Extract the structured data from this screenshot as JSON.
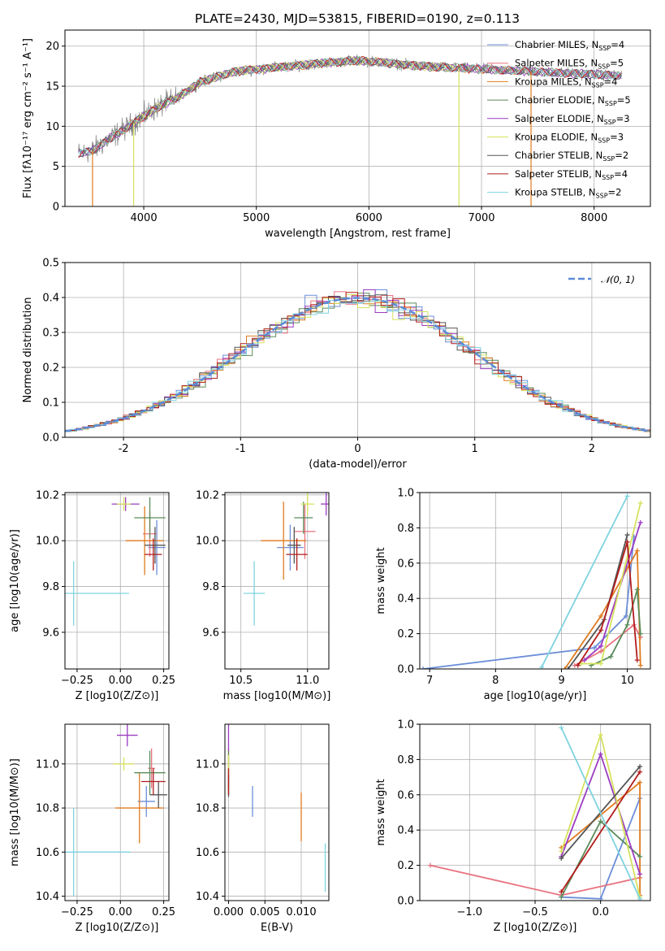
{
  "title": "PLATE=2430, MJD=53815, FIBERID=0190, z=0.113",
  "series_colors": [
    "#6c8ed8",
    "#e8727f",
    "#e07b1f",
    "#5b8c5a",
    "#9b3cc1",
    "#d6e25c",
    "#555555",
    "#b21c1c",
    "#7fd3e0"
  ],
  "chart_data": [
    {
      "type": "line",
      "id": "spectrum",
      "xlabel": "wavelength [Angstrom, rest frame]",
      "ylabel": "Flux [fλ10⁻¹⁷ erg cm⁻² s⁻¹ A⁻¹]",
      "xlim": [
        3300,
        8500
      ],
      "ylim": [
        0,
        22
      ],
      "xticks": [
        4000,
        5000,
        6000,
        7000,
        8000
      ],
      "yticks": [
        0,
        5,
        10,
        15,
        20
      ],
      "legend_position": "right",
      "legend": [
        "Chabrier MILES, N_SSP=4",
        "Salpeter MILES, N_SSP=5",
        "Kroupa MILES, N_SSP=4",
        "Chabrier ELODIE, N_SSP=5",
        "Salpeter ELODIE, N_SSP=3",
        "Kroupa ELODIE, N_SSP=3",
        "Chabrier STELIB, N_SSP=2",
        "Salpeter STELIB, N_SSP=4",
        "Kroupa STELIB, N_SSP=2"
      ],
      "continuum": {
        "x": [
          3400,
          3550,
          3700,
          3900,
          4100,
          4300,
          4500,
          4800,
          5000,
          5300,
          5600,
          5900,
          6100,
          6300,
          6600,
          6900,
          7200,
          7500,
          7800,
          8100,
          8250
        ],
        "y": [
          6.5,
          7.0,
          8.5,
          10.3,
          12.2,
          13.6,
          15.5,
          16.8,
          17.1,
          17.5,
          17.9,
          18.2,
          18.0,
          17.7,
          17.4,
          17.2,
          17.0,
          16.8,
          16.6,
          16.4,
          16.3
        ]
      }
    },
    {
      "type": "histogram",
      "id": "residuals",
      "xlabel": "(data-model)/error",
      "ylabel": "Normed distribution",
      "xlim": [
        -2.5,
        2.5
      ],
      "ylim": [
        0,
        0.5
      ],
      "xticks": [
        -2,
        -1,
        0,
        1,
        2
      ],
      "yticks": [
        0.0,
        0.1,
        0.2,
        0.3,
        0.4,
        0.5
      ],
      "legend": [
        "𝒩(0, 1)"
      ],
      "legend_position": "top-right",
      "bin_width": 0.1
    },
    {
      "type": "scatter",
      "id": "age_vs_Z",
      "xlabel": "Z [log10(Z/Z⊙)]",
      "ylabel": "age  [log10(age/yr)]",
      "xlim": [
        -0.32,
        0.28
      ],
      "ylim": [
        9.44,
        10.21
      ],
      "xticks": [
        -0.25,
        0.0,
        0.25
      ],
      "xtick_labels": [
        "−0.25",
        "0.00",
        "0.25"
      ],
      "yticks": [
        9.6,
        9.8,
        10.0,
        10.2
      ],
      "points": [
        {
          "x": 0.21,
          "y": 9.97,
          "xerr": 0.05,
          "yerr": 0.12
        },
        {
          "x": 0.17,
          "y": 10.03,
          "xerr": 0.04,
          "yerr": 0.1
        },
        {
          "x": 0.14,
          "y": 10.0,
          "xerr": 0.11,
          "yerr": 0.15
        },
        {
          "x": 0.17,
          "y": 10.1,
          "xerr": 0.09,
          "yerr": 0.09
        },
        {
          "x": 0.03,
          "y": 10.16,
          "xerr": 0.08,
          "yerr": 0.03
        },
        {
          "x": 0.02,
          "y": 10.16,
          "xerr": 0.04,
          "yerr": 0.03
        },
        {
          "x": 0.2,
          "y": 9.98,
          "xerr": 0.06,
          "yerr": 0.08
        },
        {
          "x": 0.19,
          "y": 9.94,
          "xerr": 0.05,
          "yerr": 0.07
        },
        {
          "x": -0.27,
          "y": 9.77,
          "xerr": 0.32,
          "yerr": 0.14
        }
      ]
    },
    {
      "type": "scatter",
      "id": "age_vs_mass",
      "xlabel": "mass [log10(M/M⊙)]",
      "ylabel": "",
      "xlim": [
        10.38,
        11.16
      ],
      "ylim": [
        9.44,
        10.21
      ],
      "xticks": [
        10.5,
        11.0
      ],
      "xtick_labels": [
        "10.5",
        "11.0"
      ],
      "yticks": [
        9.6,
        9.8,
        10.0,
        10.2
      ],
      "points": [
        {
          "x": 10.87,
          "y": 9.97,
          "xerr": 0.1,
          "yerr": 0.1
        },
        {
          "x": 10.98,
          "y": 10.04,
          "xerr": 0.08,
          "yerr": 0.12
        },
        {
          "x": 10.82,
          "y": 10.0,
          "xerr": 0.17,
          "yerr": 0.17
        },
        {
          "x": 10.97,
          "y": 10.1,
          "xerr": 0.07,
          "yerr": 0.07
        },
        {
          "x": 11.14,
          "y": 10.16,
          "xerr": 0.04,
          "yerr": 0.05
        },
        {
          "x": 11.0,
          "y": 10.16,
          "xerr": 0.05,
          "yerr": 0.05
        },
        {
          "x": 10.9,
          "y": 9.98,
          "xerr": 0.05,
          "yerr": 0.08
        },
        {
          "x": 10.92,
          "y": 9.94,
          "xerr": 0.08,
          "yerr": 0.07
        },
        {
          "x": 10.6,
          "y": 9.77,
          "xerr": 0.08,
          "yerr": 0.14
        }
      ]
    },
    {
      "type": "line",
      "id": "weight_vs_age",
      "xlabel": "age  [log10(age/yr)]",
      "ylabel": "mass weight",
      "xlim": [
        6.85,
        10.35
      ],
      "ylim": [
        0,
        1
      ],
      "xticks": [
        7,
        8,
        9,
        10
      ],
      "yticks": [
        0.0,
        0.2,
        0.4,
        0.6,
        0.8,
        1.0
      ],
      "series": [
        {
          "x": [
            6.9,
            9.5,
            9.98,
            10.1
          ],
          "y": [
            0.0,
            0.12,
            0.3,
            0.75
          ]
        },
        {
          "x": [
            9.2,
            9.6,
            10.1,
            10.2
          ],
          "y": [
            0.02,
            0.1,
            0.25,
            0.18
          ]
        },
        {
          "x": [
            9.05,
            9.6,
            10.15,
            10.2
          ],
          "y": [
            0.0,
            0.3,
            0.67,
            0.02
          ]
        },
        {
          "x": [
            9.45,
            9.75,
            10.0,
            10.15,
            10.2
          ],
          "y": [
            0.02,
            0.07,
            0.25,
            0.45,
            0.2
          ]
        },
        {
          "x": [
            9.35,
            9.6,
            10.2
          ],
          "y": [
            0.05,
            0.13,
            0.83
          ]
        },
        {
          "x": [
            9.3,
            9.6,
            10.2
          ],
          "y": [
            0.03,
            0.03,
            0.94
          ]
        },
        {
          "x": [
            9.1,
            9.65,
            10.0
          ],
          "y": [
            0.0,
            0.28,
            0.76
          ]
        },
        {
          "x": [
            9.25,
            9.6,
            10.0,
            10.15
          ],
          "y": [
            0.02,
            0.22,
            0.72,
            0.05
          ]
        },
        {
          "x": [
            8.7,
            10.0
          ],
          "y": [
            0.01,
            0.98
          ]
        }
      ]
    },
    {
      "type": "scatter",
      "id": "mass_vs_Z",
      "xlabel": "Z [log10(Z/Z⊙)]",
      "ylabel": "mass [log10(M/M⊙)]",
      "xlim": [
        -0.32,
        0.28
      ],
      "ylim": [
        10.38,
        11.18
      ],
      "xticks": [
        -0.25,
        0.0,
        0.25
      ],
      "xtick_labels": [
        "−0.25",
        "0.00",
        "0.25"
      ],
      "yticks": [
        10.4,
        10.6,
        10.8,
        11.0
      ],
      "points": [
        {
          "x": 0.15,
          "y": 10.83,
          "xerr": 0.05,
          "yerr": 0.07
        },
        {
          "x": 0.18,
          "y": 10.98,
          "xerr": 0.02,
          "yerr": 0.09
        },
        {
          "x": 0.11,
          "y": 10.8,
          "xerr": 0.14,
          "yerr": 0.16
        },
        {
          "x": 0.17,
          "y": 10.96,
          "xerr": 0.09,
          "yerr": 0.1
        },
        {
          "x": 0.04,
          "y": 11.13,
          "xerr": 0.06,
          "yerr": 0.05
        },
        {
          "x": 0.02,
          "y": 11.0,
          "xerr": 0.06,
          "yerr": 0.03
        },
        {
          "x": 0.22,
          "y": 10.86,
          "xerr": 0.05,
          "yerr": 0.06
        },
        {
          "x": 0.19,
          "y": 10.92,
          "xerr": 0.07,
          "yerr": 0.06
        },
        {
          "x": -0.27,
          "y": 10.6,
          "xerr": 0.33,
          "yerr": 0.2
        }
      ]
    },
    {
      "type": "scatter",
      "id": "mass_vs_ebv",
      "xlabel": "E(B-V)",
      "ylabel": "",
      "xlim": [
        -0.0005,
        0.0138
      ],
      "ylim": [
        10.38,
        11.18
      ],
      "xticks": [
        0.0,
        0.005,
        0.01
      ],
      "xtick_labels": [
        "0.000",
        "0.005",
        "0.010"
      ],
      "yticks": [
        10.4,
        10.6,
        10.8,
        11.0
      ],
      "points": [
        {
          "x": 0.0033,
          "y": 10.83,
          "xerr": 0,
          "yerr": 0.07
        },
        {
          "x": 0.0,
          "y": 10.98,
          "xerr": 0,
          "yerr": 0.09
        },
        {
          "x": 0.01,
          "y": 10.76,
          "xerr": 0,
          "yerr": 0.11
        },
        {
          "x": 0.0,
          "y": 10.96,
          "xerr": 0,
          "yerr": 0.1
        },
        {
          "x": 0.0,
          "y": 11.12,
          "xerr": 0,
          "yerr": 0.06
        },
        {
          "x": 0.0,
          "y": 11.0,
          "xerr": 0,
          "yerr": 0.04
        },
        {
          "x": 0.0,
          "y": 10.9,
          "xerr": 0,
          "yerr": 0.05
        },
        {
          "x": 0.0,
          "y": 10.92,
          "xerr": 0,
          "yerr": 0.06
        },
        {
          "x": 0.0133,
          "y": 10.53,
          "xerr": 0,
          "yerr": 0.11
        }
      ]
    },
    {
      "type": "line",
      "id": "weight_vs_Z",
      "xlabel": "Z [log10(Z/Z⊙)]",
      "ylabel": "mass weight",
      "xlim": [
        -1.38,
        0.38
      ],
      "ylim": [
        0,
        1
      ],
      "xticks": [
        -1.0,
        -0.5,
        0.0
      ],
      "xtick_labels": [
        "−1.0",
        "−0.5",
        "0.0"
      ],
      "yticks": [
        0.0,
        0.2,
        0.4,
        0.6,
        0.8,
        1.0
      ],
      "series": [
        {
          "x": [
            -0.3,
            0.0,
            0.3
          ],
          "y": [
            0.02,
            0.01,
            0.58
          ]
        },
        {
          "x": [
            -1.3,
            -0.3,
            0.3
          ],
          "y": [
            0.2,
            0.03,
            0.13
          ]
        },
        {
          "x": [
            -0.3,
            0.3,
            0.3
          ],
          "y": [
            0.3,
            0.67,
            0.03
          ]
        },
        {
          "x": [
            -0.3,
            0.0,
            0.3
          ],
          "y": [
            0.02,
            0.45,
            0.25
          ]
        },
        {
          "x": [
            -0.3,
            0.0,
            0.3
          ],
          "y": [
            0.25,
            0.83,
            0.15
          ]
        },
        {
          "x": [
            -0.3,
            0.0,
            0.3
          ],
          "y": [
            0.28,
            0.94,
            0.02
          ]
        },
        {
          "x": [
            -0.3,
            0.3
          ],
          "y": [
            0.24,
            0.76
          ]
        },
        {
          "x": [
            -0.3,
            0.3
          ],
          "y": [
            0.05,
            0.73
          ]
        },
        {
          "x": [
            -0.3,
            0.3
          ],
          "y": [
            0.98,
            0.01
          ]
        }
      ]
    }
  ]
}
